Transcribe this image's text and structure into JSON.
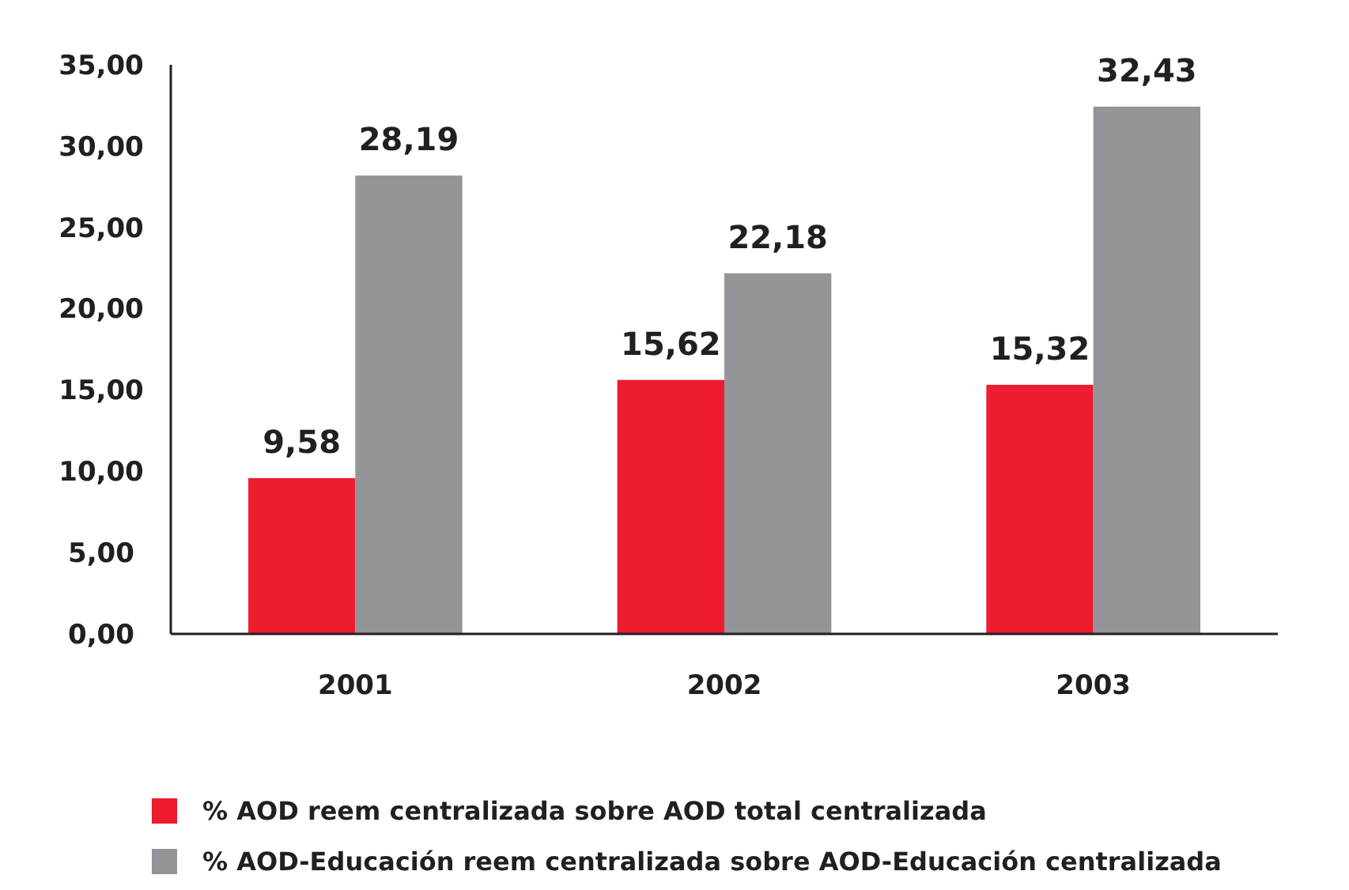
{
  "chart_data": {
    "type": "bar",
    "categories": [
      "2001",
      "2002",
      "2003"
    ],
    "series": [
      {
        "name": "% AOD reem centralizada sobre AOD total centralizada",
        "color": "#ed1c2e",
        "values": [
          9.58,
          15.62,
          15.32
        ],
        "value_labels": [
          "9,58",
          "15,62",
          "15,32"
        ]
      },
      {
        "name": "% AOD-Educación reem centralizada sobre AOD-Educación centralizada",
        "color": "#939598",
        "values": [
          28.19,
          22.18,
          32.43
        ],
        "value_labels": [
          "28,19",
          "22,18",
          "32,43"
        ]
      }
    ],
    "ylim": [
      0,
      35
    ],
    "yticks": [
      {
        "value": 0,
        "label": "0,00"
      },
      {
        "value": 5,
        "label": "5,00"
      },
      {
        "value": 10,
        "label": "10,00"
      },
      {
        "value": 15,
        "label": "15,00"
      },
      {
        "value": 20,
        "label": "20,00"
      },
      {
        "value": 25,
        "label": "25,00"
      },
      {
        "value": 30,
        "label": "30,00"
      },
      {
        "value": 35,
        "label": "35,00"
      }
    ],
    "grid": false,
    "legend": "bottom"
  }
}
